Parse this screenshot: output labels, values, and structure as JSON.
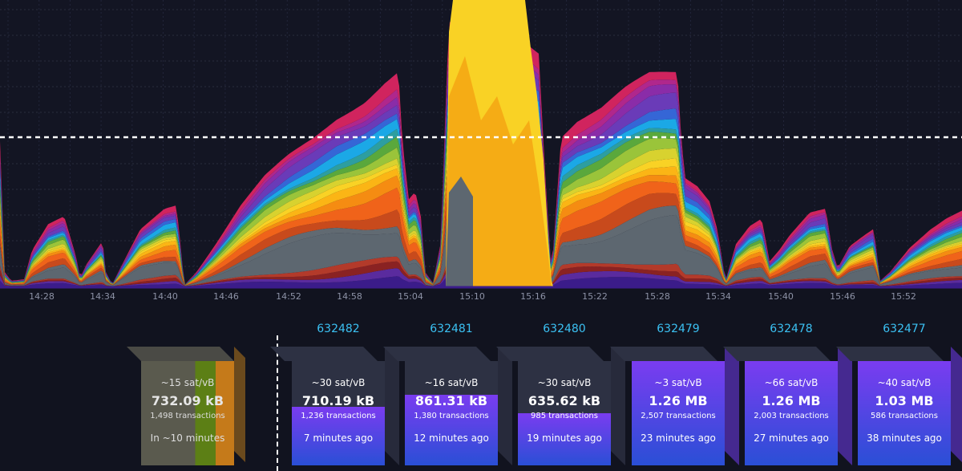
{
  "colors": {
    "background": "#11131f",
    "chart_background": "#131523",
    "block_number": "#3bc1f3",
    "block_fill_purple": "#7a3cf0",
    "block_fill_blue": "#2a4fd6",
    "block_body": "#2d3143"
  },
  "chart_data": {
    "type": "area",
    "stacked": true,
    "x_ticks": [
      "14:28",
      "14:34",
      "14:40",
      "14:46",
      "14:52",
      "14:58",
      "15:04",
      "15:10",
      "15:16",
      "15:22",
      "15:28",
      "15:34",
      "15:40",
      "15:46",
      "15:52"
    ],
    "grid": true,
    "reference_line": "dashed white horizontal line",
    "series_colors": [
      "#3b1c8a",
      "#5a2b9e",
      "#8a2222",
      "#b33a2a",
      "#5d6770",
      "#616a72",
      "#c84a1c",
      "#f0631a",
      "#f58c12",
      "#fbb515",
      "#f9d225",
      "#d8d22f",
      "#9ac43a",
      "#5aa83c",
      "#2d9ea0",
      "#1ba8e6",
      "#3566d6",
      "#6a3bb8",
      "#8a2ca8",
      "#b0278c",
      "#d0245e"
    ]
  },
  "timeline": {
    "projected_block": {
      "fee_range": "~15 sat/vB",
      "size": "732.09 kB",
      "transactions": "1,498 transactions",
      "eta": "In ~10 minutes"
    },
    "blocks": [
      {
        "height": "632482",
        "fee_range": "~30 sat/vB",
        "size": "710.19 kB",
        "transactions": "1,236 transactions",
        "time_ago": "7 minutes ago",
        "fill": 0.56
      },
      {
        "height": "632481",
        "fee_range": "~16 sat/vB",
        "size": "861.31 kB",
        "transactions": "1,380 transactions",
        "time_ago": "12 minutes ago",
        "fill": 0.68
      },
      {
        "height": "632480",
        "fee_range": "~30 sat/vB",
        "size": "635.62 kB",
        "transactions": "985 transactions",
        "time_ago": "19 minutes ago",
        "fill": 0.5
      },
      {
        "height": "632479",
        "fee_range": "~3 sat/vB",
        "size": "1.26 MB",
        "transactions": "2,507 transactions",
        "time_ago": "23 minutes ago",
        "fill": 1.0
      },
      {
        "height": "632478",
        "fee_range": "~66 sat/vB",
        "size": "1.26 MB",
        "transactions": "2,003 transactions",
        "time_ago": "27 minutes ago",
        "fill": 1.0
      },
      {
        "height": "632477",
        "fee_range": "~40 sat/vB",
        "size": "1.03 MB",
        "transactions": "586 transactions",
        "time_ago": "38 minutes ago",
        "fill": 1.0
      }
    ]
  }
}
